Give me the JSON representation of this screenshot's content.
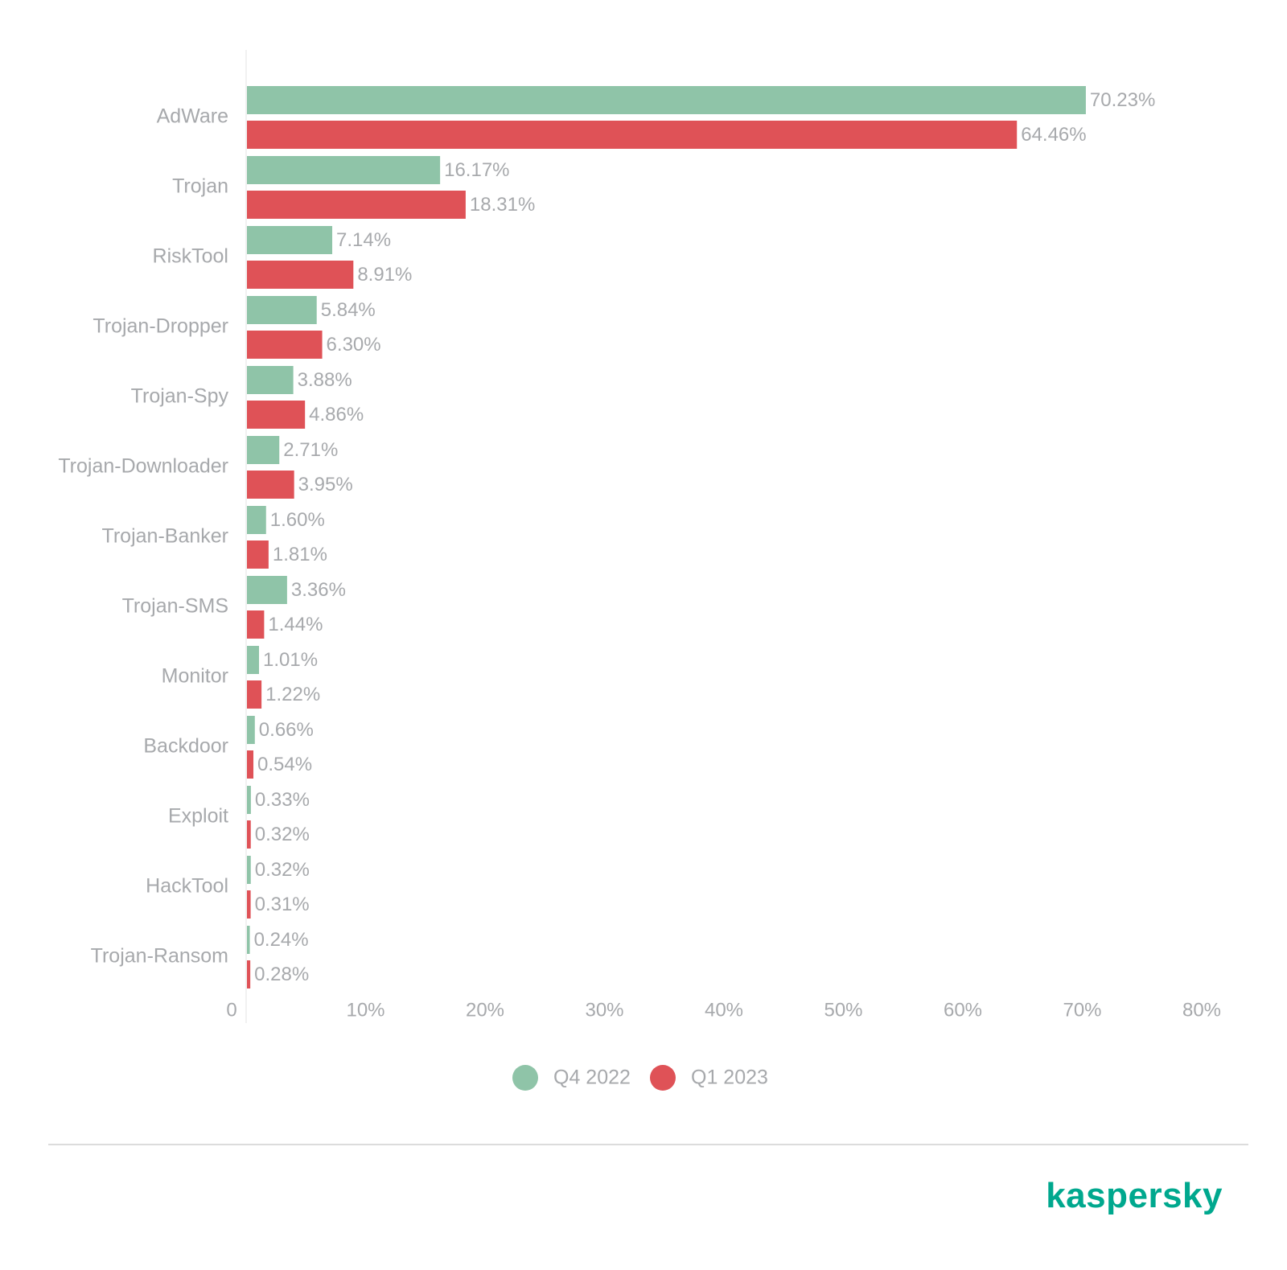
{
  "colors": {
    "q4_2022": "#8fc4a8",
    "q1_2023": "#df5257",
    "text": "#a7a9ac",
    "axis": "#e3e3e3",
    "divider": "#dcdcdc",
    "brand": "#00a88e"
  },
  "brand": {
    "logo_text": "kaspersky"
  },
  "chart_data": {
    "type": "bar",
    "orientation": "horizontal",
    "categories": [
      "AdWare",
      "Trojan",
      "RiskTool",
      "Trojan-Dropper",
      "Trojan-Spy",
      "Trojan-Downloader",
      "Trojan-Banker",
      "Trojan-SMS",
      "Monitor",
      "Backdoor",
      "Exploit",
      "HackTool",
      "Trojan-Ransom"
    ],
    "series": [
      {
        "name": "Q4 2022",
        "values": [
          70.23,
          16.17,
          7.14,
          5.84,
          3.88,
          2.71,
          1.6,
          3.36,
          1.01,
          0.66,
          0.33,
          0.32,
          0.24
        ],
        "labels": [
          "70.23%",
          "16.17%",
          "7.14%",
          "5.84%",
          "3.88%",
          "2.71%",
          "1.60%",
          "3.36%",
          "1.01%",
          "0.66%",
          "0.33%",
          "0.32%",
          "0.24%"
        ]
      },
      {
        "name": "Q1 2023",
        "values": [
          64.46,
          18.31,
          8.91,
          6.3,
          4.86,
          3.95,
          1.81,
          1.44,
          1.22,
          0.54,
          0.32,
          0.31,
          0.28
        ],
        "labels": [
          "64.46%",
          "18.31%",
          "8.91%",
          "6.30%",
          "4.86%",
          "3.95%",
          "1.81%",
          "1.44%",
          "1.22%",
          "0.54%",
          "0.32%",
          "0.31%",
          "0.28%"
        ]
      }
    ],
    "xlim": [
      0,
      80
    ],
    "xticks": [
      0,
      10,
      20,
      30,
      40,
      50,
      60,
      70,
      80
    ],
    "xtick_labels": [
      "0",
      "10%",
      "20%",
      "30%",
      "40%",
      "50%",
      "60%",
      "70%",
      "80%"
    ],
    "title": "",
    "xlabel": "",
    "ylabel": "",
    "grid": false,
    "legend": "bottom-center"
  }
}
